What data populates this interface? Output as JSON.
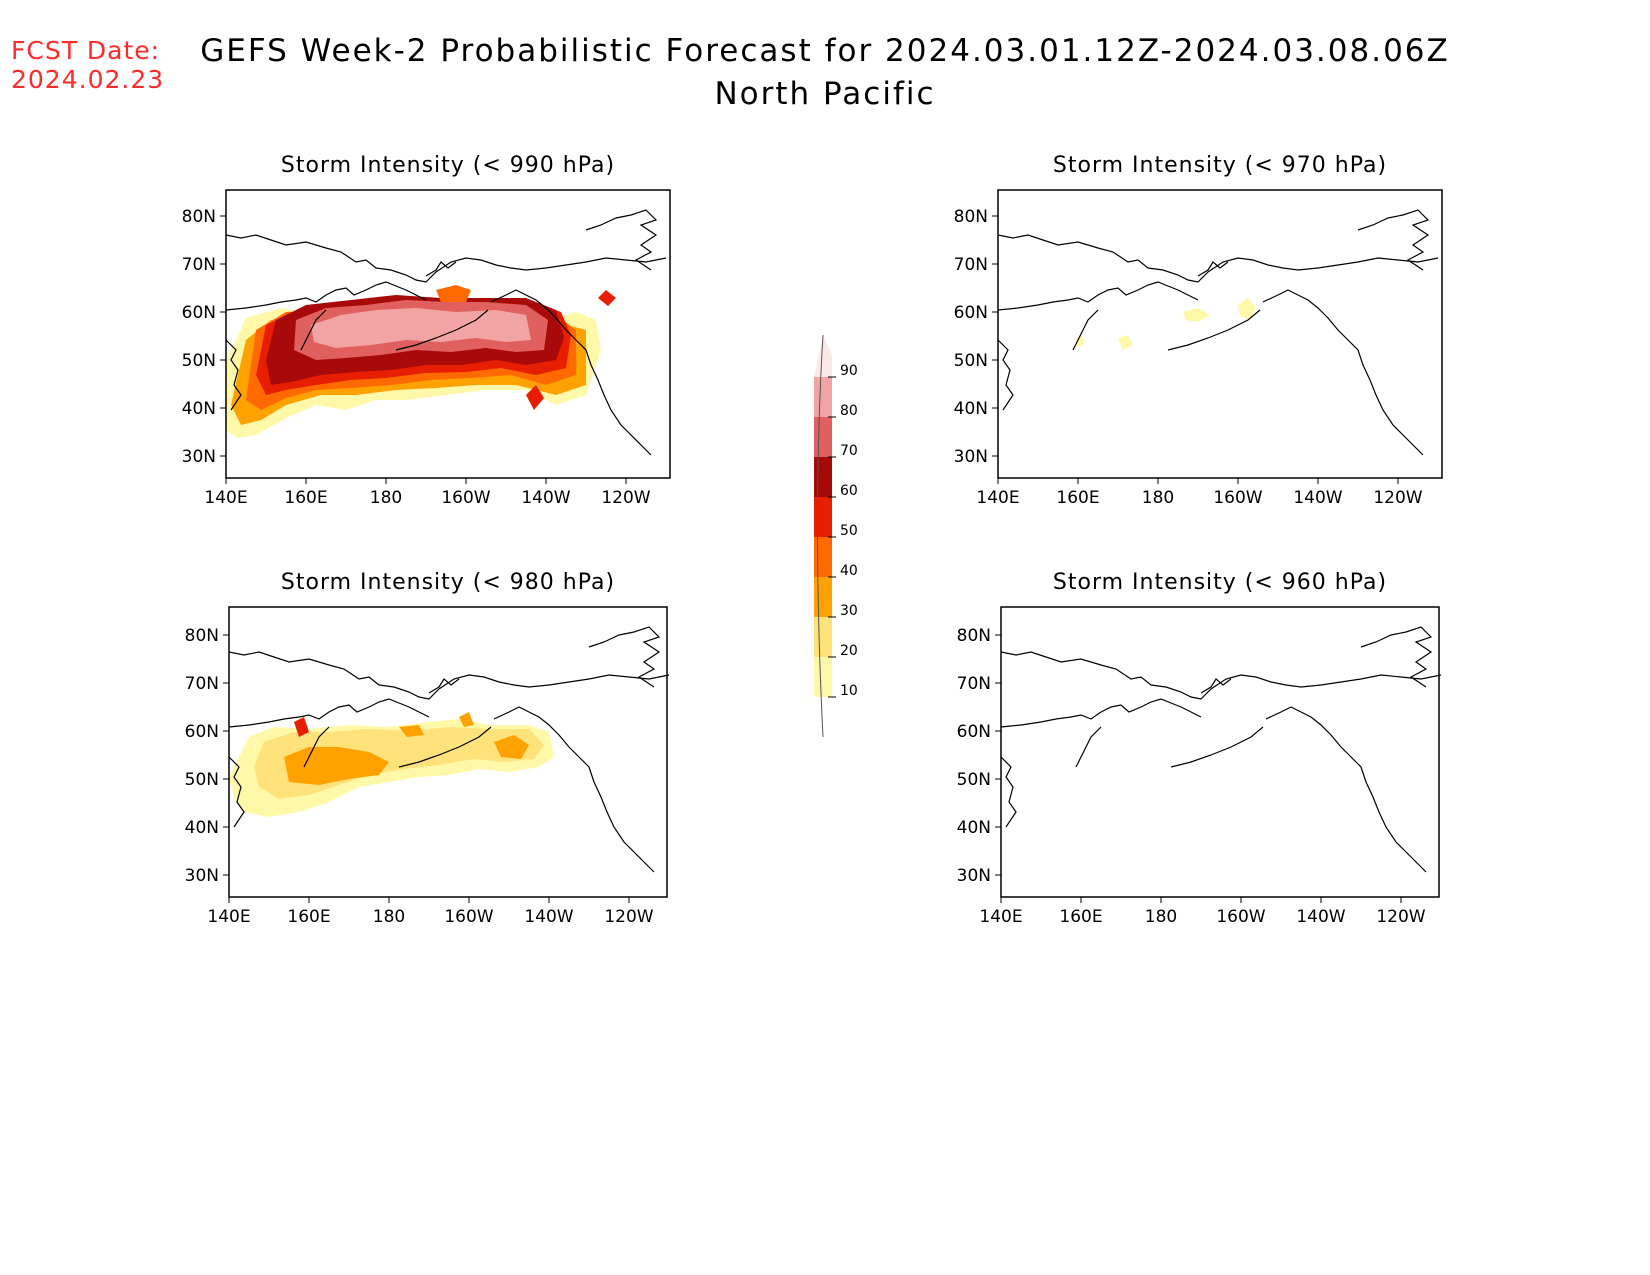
{
  "header": {
    "fcst_label": "FCST Date:",
    "fcst_date": "2024.02.23",
    "title_line1": "GEFS Week-2 Probabilistic Forecast for 2024.03.01.12Z-2024.03.08.06Z",
    "title_line2": "North Pacific"
  },
  "colors": {
    "coast": "#000000",
    "fcst_text": "#ff2a2a"
  },
  "legend": {
    "levels": [
      "10",
      "20",
      "30",
      "40",
      "50",
      "60",
      "70",
      "80",
      "90"
    ],
    "colors": [
      "#fff8a8",
      "#ffe27a",
      "#ffa200",
      "#ff6a00",
      "#e81e00",
      "#a80a0a",
      "#e06060",
      "#f2a4a4",
      "#fde8e8"
    ]
  },
  "axes": {
    "x_ticks": [
      "140E",
      "160E",
      "180",
      "160W",
      "140W",
      "120W"
    ],
    "y_ticks": [
      "30N",
      "40N",
      "50N",
      "60N",
      "70N",
      "80N"
    ]
  },
  "panels": [
    {
      "id": "p990",
      "title": "Storm Intensity (< 990 hPa)"
    },
    {
      "id": "p970",
      "title": "Storm Intensity (< 970 hPa)"
    },
    {
      "id": "p980",
      "title": "Storm Intensity (< 980 hPa)"
    },
    {
      "id": "p960",
      "title": "Storm Intensity (< 960 hPa)"
    }
  ]
}
